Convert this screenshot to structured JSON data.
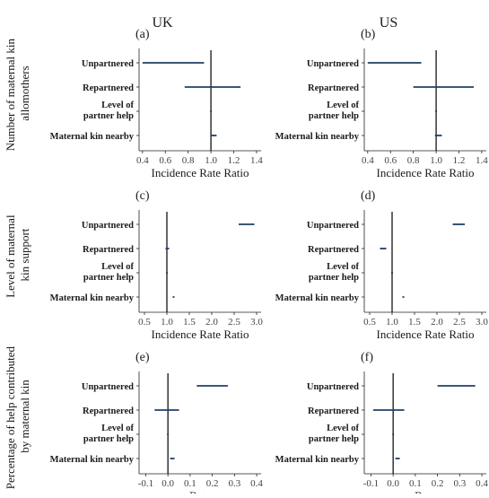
{
  "figure": {
    "columns": [
      "UK",
      "US"
    ],
    "row_titles": [
      [
        "Number of maternal kin",
        "allomothers"
      ],
      [
        "Level of maternal",
        "kin support"
      ],
      [
        "Percentage of help contributed",
        "by maternal kin"
      ]
    ]
  },
  "colors": {
    "interval": "#1f3f64",
    "axis": "#222222",
    "reference": "#000000"
  },
  "chart_data": [
    {
      "panel": "(a)",
      "type": "forest",
      "xlabel": "Incidence Rate Ratio",
      "xlim": [
        0.37,
        1.44
      ],
      "ticks": [
        0.4,
        0.6,
        0.8,
        1.0,
        1.2,
        1.4
      ],
      "tick_labels": [
        "0.4",
        "0.6",
        "0.8",
        "1.0",
        "1.2",
        "1.4"
      ],
      "reference": 1.0,
      "categories": [
        "Unpartnered",
        "Repartnered",
        "Level of partner help",
        "Maternal kin nearby"
      ],
      "intervals": [
        {
          "category": "Unpartnered",
          "low": 0.4,
          "high": 0.94
        },
        {
          "category": "Repartnered",
          "low": 0.77,
          "high": 1.26
        },
        {
          "category": "Level of partner help",
          "low": 0.995,
          "high": 1.005
        },
        {
          "category": "Maternal kin nearby",
          "low": 1.0,
          "high": 1.05
        }
      ]
    },
    {
      "panel": "(b)",
      "type": "forest",
      "xlabel": "Incidence Rate Ratio",
      "xlim": [
        0.37,
        1.44
      ],
      "ticks": [
        0.4,
        0.6,
        0.8,
        1.0,
        1.2,
        1.4
      ],
      "tick_labels": [
        "0.4",
        "0.6",
        "0.8",
        "1.0",
        "1.2",
        "1.4"
      ],
      "reference": 1.0,
      "categories": [
        "Unpartnered",
        "Repartnered",
        "Level of partner help",
        "Maternal kin nearby"
      ],
      "intervals": [
        {
          "category": "Unpartnered",
          "low": 0.4,
          "high": 0.87
        },
        {
          "category": "Repartnered",
          "low": 0.8,
          "high": 1.33
        },
        {
          "category": "Level of partner help",
          "low": 0.995,
          "high": 1.005
        },
        {
          "category": "Maternal kin nearby",
          "low": 0.99,
          "high": 1.05
        }
      ]
    },
    {
      "panel": "(c)",
      "type": "forest",
      "xlabel": "Incidence Rate Ratio",
      "xlim": [
        0.38,
        3.1
      ],
      "ticks": [
        0.5,
        1.0,
        1.5,
        2.0,
        2.5,
        3.0
      ],
      "tick_labels": [
        "0.5",
        "1.0",
        "1.5",
        "2.0",
        "2.5",
        "3.0"
      ],
      "reference": 1.0,
      "categories": [
        "Unpartnered",
        "Repartnered",
        "Level of partner help",
        "Maternal kin nearby"
      ],
      "intervals": [
        {
          "category": "Unpartnered",
          "low": 2.6,
          "high": 2.95
        },
        {
          "category": "Repartnered",
          "low": 0.97,
          "high": 1.05
        },
        {
          "category": "Level of partner help",
          "low": 0.998,
          "high": 1.002
        },
        {
          "category": "Maternal kin nearby",
          "low": 1.14,
          "high": 1.16
        }
      ]
    },
    {
      "panel": "(d)",
      "type": "forest",
      "xlabel": "Incidence Rate Ratio",
      "xlim": [
        0.38,
        3.1
      ],
      "ticks": [
        0.5,
        1.0,
        1.5,
        2.0,
        2.5,
        3.0
      ],
      "tick_labels": [
        "0.5",
        "1.0",
        "1.5",
        "2.0",
        "2.5",
        "3.0"
      ],
      "reference": 1.0,
      "categories": [
        "Unpartnered",
        "Repartnered",
        "Level of partner help",
        "Maternal kin nearby"
      ],
      "intervals": [
        {
          "category": "Unpartnered",
          "low": 2.35,
          "high": 2.62
        },
        {
          "category": "Repartnered",
          "low": 0.73,
          "high": 0.87
        },
        {
          "category": "Level of partner help",
          "low": 0.998,
          "high": 1.002
        },
        {
          "category": "Maternal kin nearby",
          "low": 1.24,
          "high": 1.26
        }
      ]
    },
    {
      "panel": "(e)",
      "type": "forest",
      "xlabel": "Beta",
      "xlim": [
        -0.13,
        0.42
      ],
      "ticks": [
        -0.1,
        0.0,
        0.1,
        0.2,
        0.3,
        0.4
      ],
      "tick_labels": [
        "-0.1",
        "0.0",
        "0.1",
        "0.2",
        "0.3",
        "0.4"
      ],
      "reference": 0.0,
      "categories": [
        "Unpartnered",
        "Repartnered",
        "Level of partner help",
        "Maternal kin nearby"
      ],
      "intervals": [
        {
          "category": "Unpartnered",
          "low": 0.13,
          "high": 0.27
        },
        {
          "category": "Repartnered",
          "low": -0.06,
          "high": 0.05
        },
        {
          "category": "Level of partner help",
          "low": -0.002,
          "high": 0.002
        },
        {
          "category": "Maternal kin nearby",
          "low": 0.01,
          "high": 0.03
        }
      ]
    },
    {
      "panel": "(f)",
      "type": "forest",
      "xlabel": "Beta",
      "xlim": [
        -0.13,
        0.42
      ],
      "ticks": [
        -0.1,
        0.0,
        0.1,
        0.2,
        0.3,
        0.4
      ],
      "tick_labels": [
        "-0.1",
        "0.0",
        "0.1",
        "0.2",
        "0.3",
        "0.4"
      ],
      "reference": 0.0,
      "categories": [
        "Unpartnered",
        "Repartnered",
        "Level of partner help",
        "Maternal kin nearby"
      ],
      "intervals": [
        {
          "category": "Unpartnered",
          "low": 0.2,
          "high": 0.37
        },
        {
          "category": "Repartnered",
          "low": -0.09,
          "high": 0.05
        },
        {
          "category": "Level of partner help",
          "low": -0.002,
          "high": 0.002
        },
        {
          "category": "Maternal kin nearby",
          "low": 0.01,
          "high": 0.03
        }
      ]
    }
  ]
}
